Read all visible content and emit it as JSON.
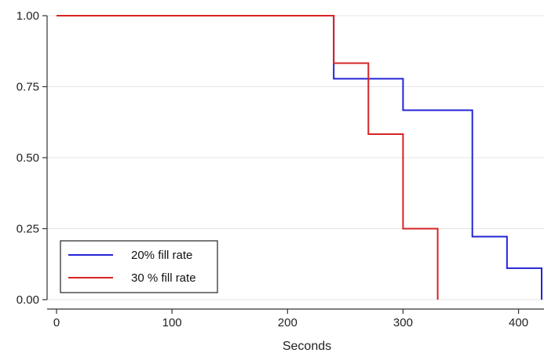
{
  "chart_data": {
    "type": "line",
    "step": true,
    "xlabel": "Seconds",
    "ylabel": "",
    "xlim": [
      0,
      420
    ],
    "ylim": [
      0,
      1
    ],
    "x_ticks": [
      0,
      100,
      200,
      300,
      400
    ],
    "x_tick_labels": [
      "0",
      "100",
      "200",
      "300",
      "400"
    ],
    "y_ticks": [
      0,
      0.25,
      0.5,
      0.75,
      1
    ],
    "y_tick_labels": [
      "0.00",
      "0.25",
      "0.50",
      "0.75",
      "1.00"
    ],
    "grid": "horizontal",
    "legend_position": "bottom-left",
    "series": [
      {
        "name": "20% fill rate",
        "color": "#2424d6",
        "x": [
          0,
          240,
          300,
          360,
          390,
          420
        ],
        "y": [
          1.0,
          0.778,
          0.667,
          0.222,
          0.111,
          0.0
        ]
      },
      {
        "name": "30 % fill rate",
        "color": "#d62424",
        "x": [
          0,
          240,
          270,
          300,
          330
        ],
        "y": [
          1.0,
          0.833,
          0.583,
          0.25,
          0.0
        ]
      }
    ]
  }
}
